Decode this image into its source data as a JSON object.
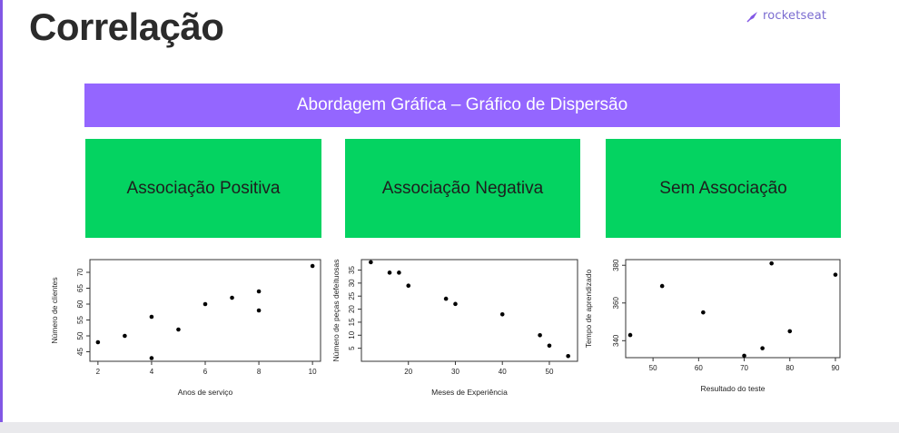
{
  "slide": {
    "title": "Correlação",
    "logo_text": "rocketseat",
    "banner": "Abordagem Gráfica – Gráfico de Dispersão",
    "boxes": [
      "Associação Positiva",
      "Associação Negativa",
      "Sem Associação"
    ],
    "accent_purple": "#9466ff",
    "accent_green": "#04d361"
  },
  "chart_data": [
    {
      "type": "scatter",
      "xlabel": "Anos de serviço",
      "ylabel": "Número de clientes",
      "xlim": [
        1.7,
        10.3
      ],
      "ylim": [
        42,
        74
      ],
      "xticks": [
        2,
        4,
        6,
        8,
        10
      ],
      "yticks": [
        45,
        50,
        55,
        60,
        65,
        70
      ],
      "points": [
        [
          2,
          48
        ],
        [
          3,
          50
        ],
        [
          4,
          56
        ],
        [
          4,
          43
        ],
        [
          5,
          52
        ],
        [
          6,
          60
        ],
        [
          7,
          62
        ],
        [
          8,
          64
        ],
        [
          8,
          58
        ],
        [
          10,
          72
        ]
      ]
    },
    {
      "type": "scatter",
      "xlabel": "Meses de Experiência",
      "ylabel": "Número de peças defeituosas",
      "xlim": [
        10,
        56
      ],
      "ylim": [
        0,
        39
      ],
      "xticks": [
        20,
        30,
        40,
        50
      ],
      "yticks": [
        5,
        10,
        15,
        20,
        25,
        30,
        35
      ],
      "points": [
        [
          12,
          38
        ],
        [
          16,
          34
        ],
        [
          18,
          34
        ],
        [
          20,
          29
        ],
        [
          28,
          24
        ],
        [
          30,
          22
        ],
        [
          40,
          18
        ],
        [
          48,
          10
        ],
        [
          50,
          6
        ],
        [
          54,
          2
        ]
      ]
    },
    {
      "type": "scatter",
      "xlabel": "Resultado do teste",
      "ylabel": "Tempo de aprendizado",
      "xlim": [
        44,
        91
      ],
      "ylim": [
        331,
        383
      ],
      "xticks": [
        50,
        60,
        70,
        80,
        90
      ],
      "yticks": [
        340,
        360,
        380
      ],
      "points": [
        [
          45,
          343
        ],
        [
          52,
          369
        ],
        [
          61,
          355
        ],
        [
          70,
          332
        ],
        [
          74,
          336
        ],
        [
          76,
          381
        ],
        [
          80,
          345
        ],
        [
          90,
          375
        ]
      ]
    }
  ]
}
